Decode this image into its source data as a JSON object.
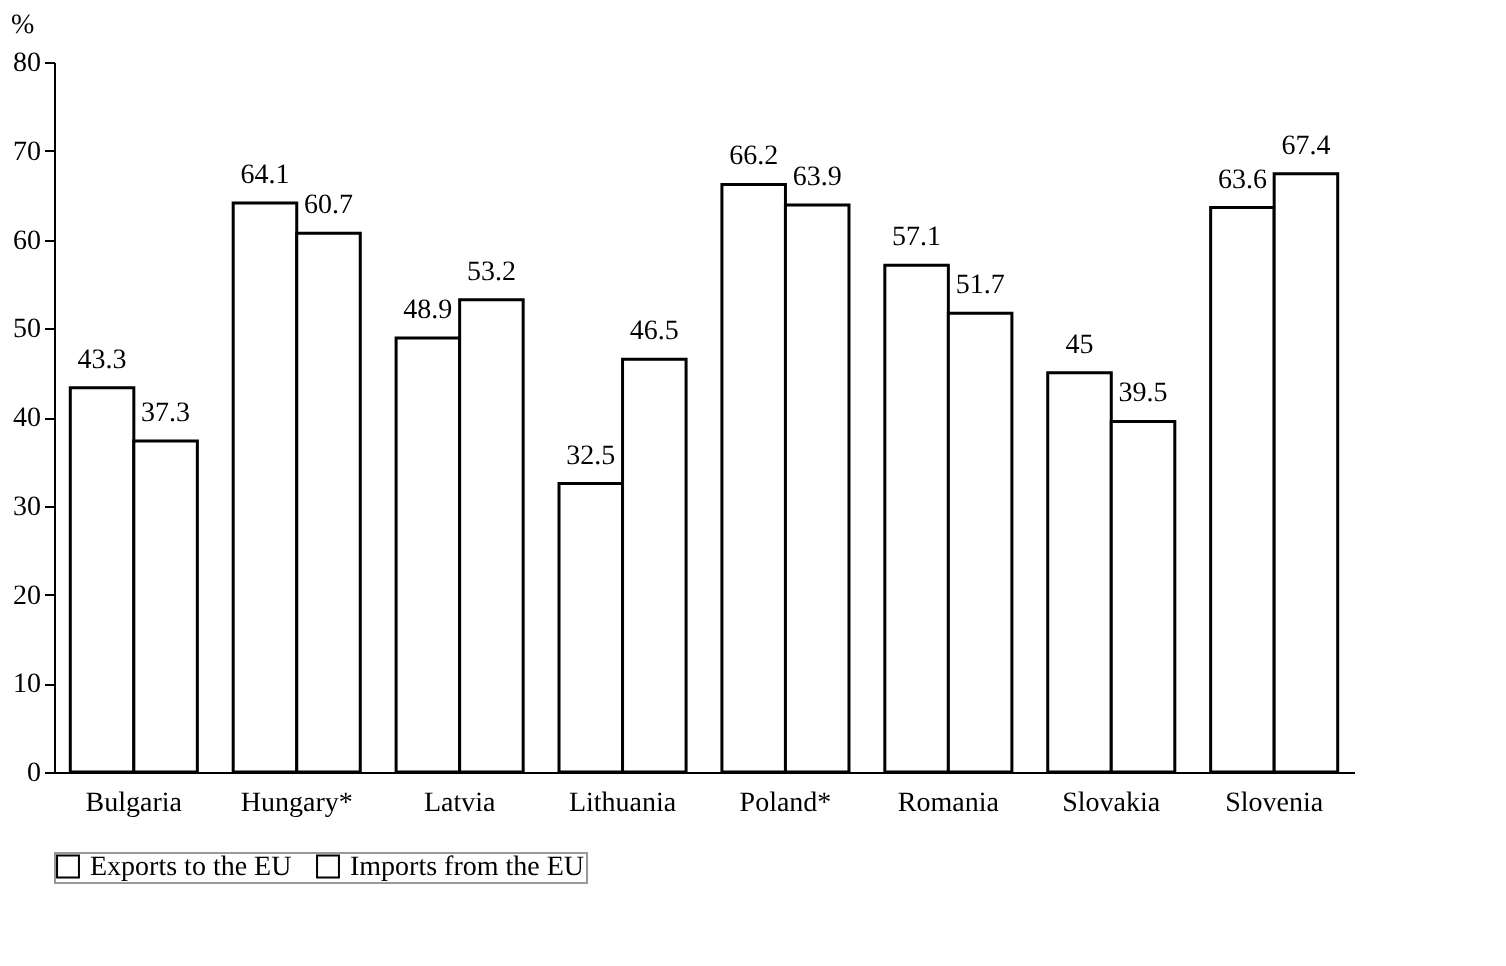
{
  "chart_data": {
    "type": "bar",
    "ylabel": "%",
    "categories": [
      "Bulgaria",
      "Hungary*",
      "Latvia",
      "Lithuania",
      "Poland*",
      "Romania",
      "Slovakia",
      "Slovenia"
    ],
    "series": [
      {
        "name": "Exports to the EU",
        "color": "#ffffff",
        "values": [
          43.3,
          64.1,
          48.9,
          32.5,
          66.2,
          57.1,
          45,
          63.6
        ]
      },
      {
        "name": "Imports from the EU",
        "color": "#ffffff",
        "values": [
          37.3,
          60.7,
          53.2,
          46.5,
          63.9,
          51.7,
          39.5,
          67.4
        ]
      }
    ],
    "ylim": [
      0,
      80
    ],
    "yticks": [
      0,
      10,
      20,
      30,
      40,
      50,
      60,
      70,
      80
    ],
    "data_labels": true,
    "legend": "bottom",
    "grid": false
  }
}
